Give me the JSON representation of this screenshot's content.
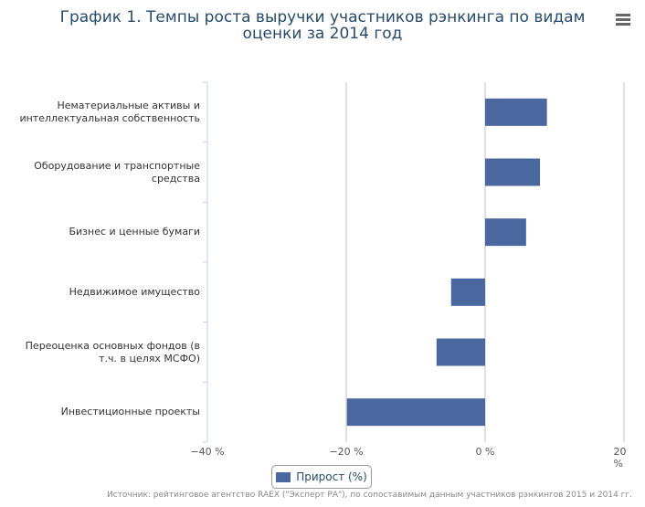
{
  "chart_data": {
    "type": "bar",
    "orientation": "horizontal",
    "title": "График 1. Темпы роста выручки участников рэнкинга по видам оценки за 2014 год",
    "categories": [
      "Нематериальные активы и интеллектуальная собственность",
      "Оборудование и транспортные средства",
      "Бизнес и ценные бумаги",
      "Недвижимое имущество",
      "Переоценка основных фондов (в т.ч. в целях МСФО)",
      "Инвестиционные проекты"
    ],
    "series": [
      {
        "name": "Прирост (%)",
        "color": "#4a67a0",
        "values": [
          8.9,
          7.9,
          5.9,
          -4.9,
          -7.0,
          -19.9
        ]
      }
    ],
    "xlim": [
      -40,
      20
    ],
    "xticks": [
      {
        "value": -40,
        "label": "−40 %"
      },
      {
        "value": -20,
        "label": "−20 %"
      },
      {
        "value": 0,
        "label": "0 %"
      },
      {
        "value": 20,
        "label": "20 %"
      }
    ],
    "grid": true,
    "legend": "bottom",
    "source": "Источник: рейтинговое агентство RAEX (\"Эксперт РА\"), по сопоставимым данным участников рэнкингов 2015 и 2014 гг."
  }
}
